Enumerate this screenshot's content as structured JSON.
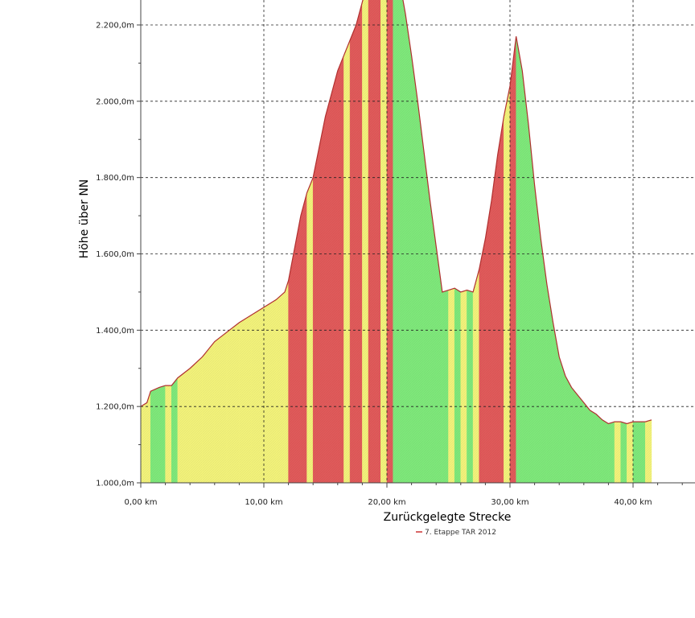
{
  "chart_data": {
    "type": "area",
    "title": "",
    "xlabel": "Zurückgelegte Strecke",
    "ylabel": "Höhe über NN",
    "x_unit": "km",
    "y_unit": "m",
    "xlim": [
      0,
      45
    ],
    "ylim": [
      1000,
      2400
    ],
    "x_ticks": [
      0,
      10,
      20,
      30,
      40
    ],
    "x_tick_labels": [
      "0,00 km",
      "10,00 km",
      "20,00 km",
      "30,00 km",
      "40,00 km"
    ],
    "y_ticks": [
      1000,
      1200,
      1400,
      1600,
      1800,
      2000,
      2200
    ],
    "y_tick_labels": [
      "1.000,0m",
      "1.200,0m",
      "1.400,0m",
      "1.600,0m",
      "1.800,0m",
      "2.000,0m",
      "2.200,0m"
    ],
    "grid": true,
    "legend": {
      "position": "bottom-center",
      "entries": [
        {
          "label": "7. Etappe TAR 2012",
          "color": "#cc3333"
        }
      ]
    },
    "gradient_colors": {
      "red": "#e05a5a",
      "yellow": "#f2f27a",
      "green": "#7ee87a"
    },
    "series": [
      {
        "name": "7. Etappe TAR 2012",
        "x": [
          0,
          0.5,
          0.8,
          1.5,
          2,
          2.5,
          3,
          4,
          5,
          6,
          7,
          8,
          9,
          10,
          11,
          11.7,
          12,
          13,
          13.5,
          14,
          14.5,
          15,
          15.5,
          16,
          16.5,
          17,
          17.5,
          18,
          18.5,
          19,
          19.5,
          20,
          20.5,
          21,
          21.5,
          22,
          22.5,
          23,
          23.5,
          24,
          24.5,
          25,
          25.5,
          26,
          26.5,
          27,
          27.5,
          28,
          28.5,
          29,
          29.5,
          30,
          30.5,
          31,
          31.5,
          32,
          32.5,
          33,
          33.5,
          34,
          34.5,
          35,
          35.5,
          36,
          36.5,
          37,
          37.5,
          38,
          38.5,
          39,
          39.5,
          40,
          40.5,
          41,
          41.5
        ],
        "y": [
          1200,
          1210,
          1240,
          1250,
          1255,
          1255,
          1275,
          1300,
          1330,
          1370,
          1395,
          1420,
          1440,
          1460,
          1480,
          1500,
          1530,
          1700,
          1760,
          1800,
          1880,
          1960,
          2020,
          2080,
          2120,
          2160,
          2200,
          2260,
          2320,
          2380,
          2410,
          2420,
          2400,
          2320,
          2230,
          2120,
          2000,
          1870,
          1740,
          1620,
          1500,
          1505,
          1510,
          1500,
          1505,
          1500,
          1560,
          1640,
          1740,
          1860,
          1960,
          2040,
          2170,
          2080,
          1940,
          1780,
          1640,
          1520,
          1420,
          1330,
          1280,
          1250,
          1230,
          1210,
          1190,
          1180,
          1165,
          1155,
          1160,
          1160,
          1155,
          1160,
          1160,
          1160,
          1165
        ],
        "gradient_class": [
          "Y",
          "Y",
          "G",
          "G",
          "Y",
          "G",
          "Y",
          "Y",
          "Y",
          "Y",
          "Y",
          "Y",
          "Y",
          "Y",
          "Y",
          "Y",
          "R",
          "R",
          "Y",
          "R",
          "R",
          "R",
          "R",
          "R",
          "Y",
          "R",
          "R",
          "Y",
          "R",
          "R",
          "Y",
          "R",
          "G",
          "G",
          "G",
          "G",
          "G",
          "G",
          "G",
          "G",
          "G",
          "Y",
          "G",
          "Y",
          "G",
          "Y",
          "R",
          "R",
          "R",
          "R",
          "Y",
          "R",
          "G",
          "G",
          "G",
          "G",
          "G",
          "G",
          "G",
          "G",
          "G",
          "G",
          "G",
          "G",
          "G",
          "G",
          "G",
          "G",
          "Y",
          "G",
          "Y",
          "G",
          "G",
          "Y",
          "G"
        ]
      }
    ]
  }
}
